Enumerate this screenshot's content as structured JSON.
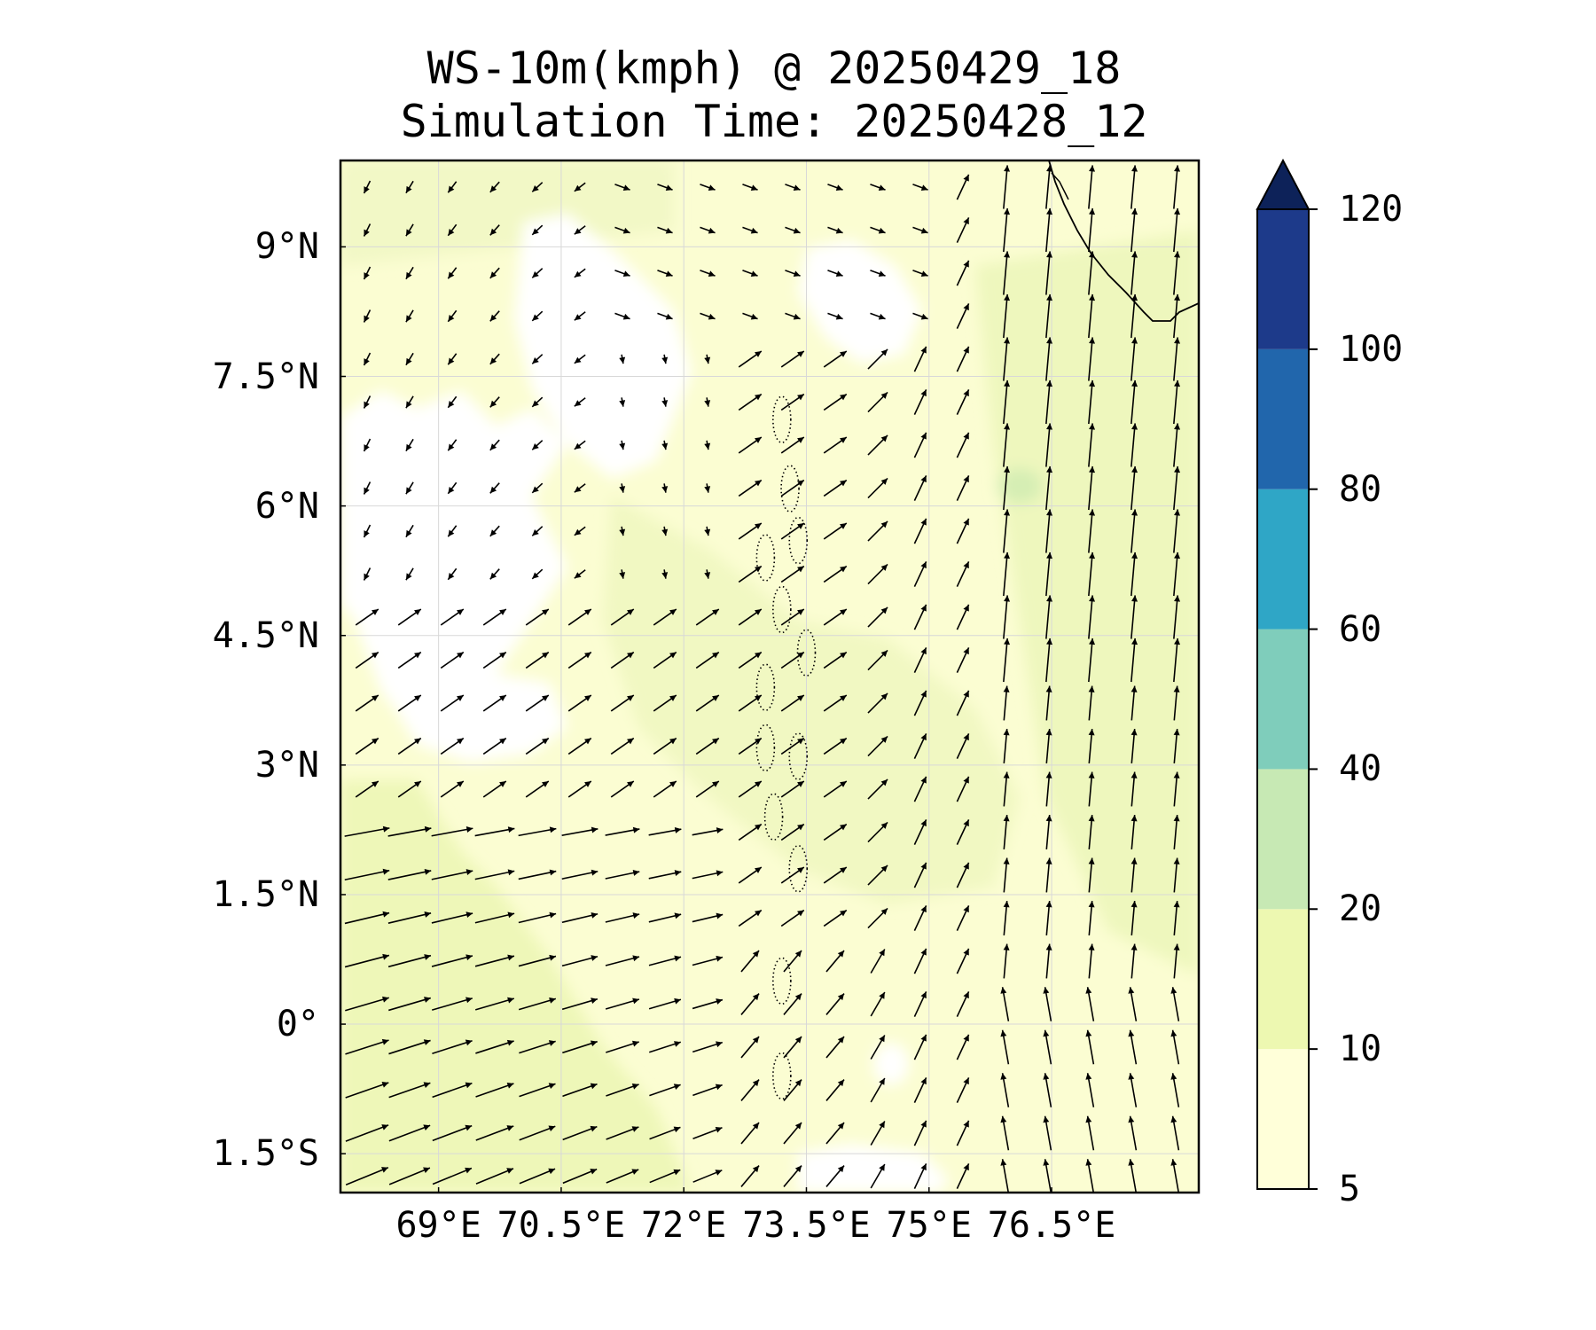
{
  "title": {
    "line1": "WS-10m(kmph) @ 20250429_18",
    "line2": "Simulation Time: 20250428_12"
  },
  "chart_data": {
    "type": "heatmap",
    "variable": "WS-10m(kmph)",
    "valid_time": "20250429_18",
    "simulation_time": "20250428_12",
    "lon_range": [
      67.8,
      78.3
    ],
    "lat_range": [
      -1.95,
      10.0
    ],
    "lon_ticks": [
      69,
      70.5,
      72,
      73.5,
      75,
      76.5
    ],
    "lon_tick_labels": [
      "69°E",
      "70.5°E",
      "72°E",
      "73.5°E",
      "75°E",
      "76.5°E"
    ],
    "lat_ticks": [
      9,
      7.5,
      6,
      4.5,
      3,
      1.5,
      0,
      -1.5
    ],
    "lat_tick_labels": [
      "9°N",
      "7.5°N",
      "6°N",
      "4.5°N",
      "3°N",
      "1.5°N",
      "0°",
      "1.5°S"
    ],
    "grid": true,
    "colorbar": {
      "levels": [
        5,
        10,
        20,
        40,
        60,
        80,
        100,
        120
      ],
      "labels": [
        "5",
        "10",
        "20",
        "40",
        "60",
        "80",
        "100",
        "120"
      ],
      "colors": [
        "#ffffd9",
        "#edf8b1",
        "#c7e9b4",
        "#7fcdbb",
        "#2fa6c6",
        "#2166ac",
        "#1d3a8a",
        "#0d2259"
      ],
      "extend": "max"
    },
    "wind_field": {
      "description_regions": [
        {
          "region": "west_south (lon<72, lat<2.5)",
          "direction_deg_toward": 80,
          "speed_kmph": 15
        },
        {
          "region": "west_north (lon<71, lat>5)",
          "direction_deg_toward": 210,
          "speed_kmph": 7
        },
        {
          "region": "center (72-74.5E, 1-6N)",
          "direction_deg_toward": 50,
          "speed_kmph": 12
        },
        {
          "region": "east (lon>75.5)",
          "direction_deg_toward": 0,
          "speed_kmph": 16
        },
        {
          "region": "north_center (lat>8, 72-75E)",
          "direction_deg_toward": 120,
          "speed_kmph": 8
        }
      ]
    }
  }
}
